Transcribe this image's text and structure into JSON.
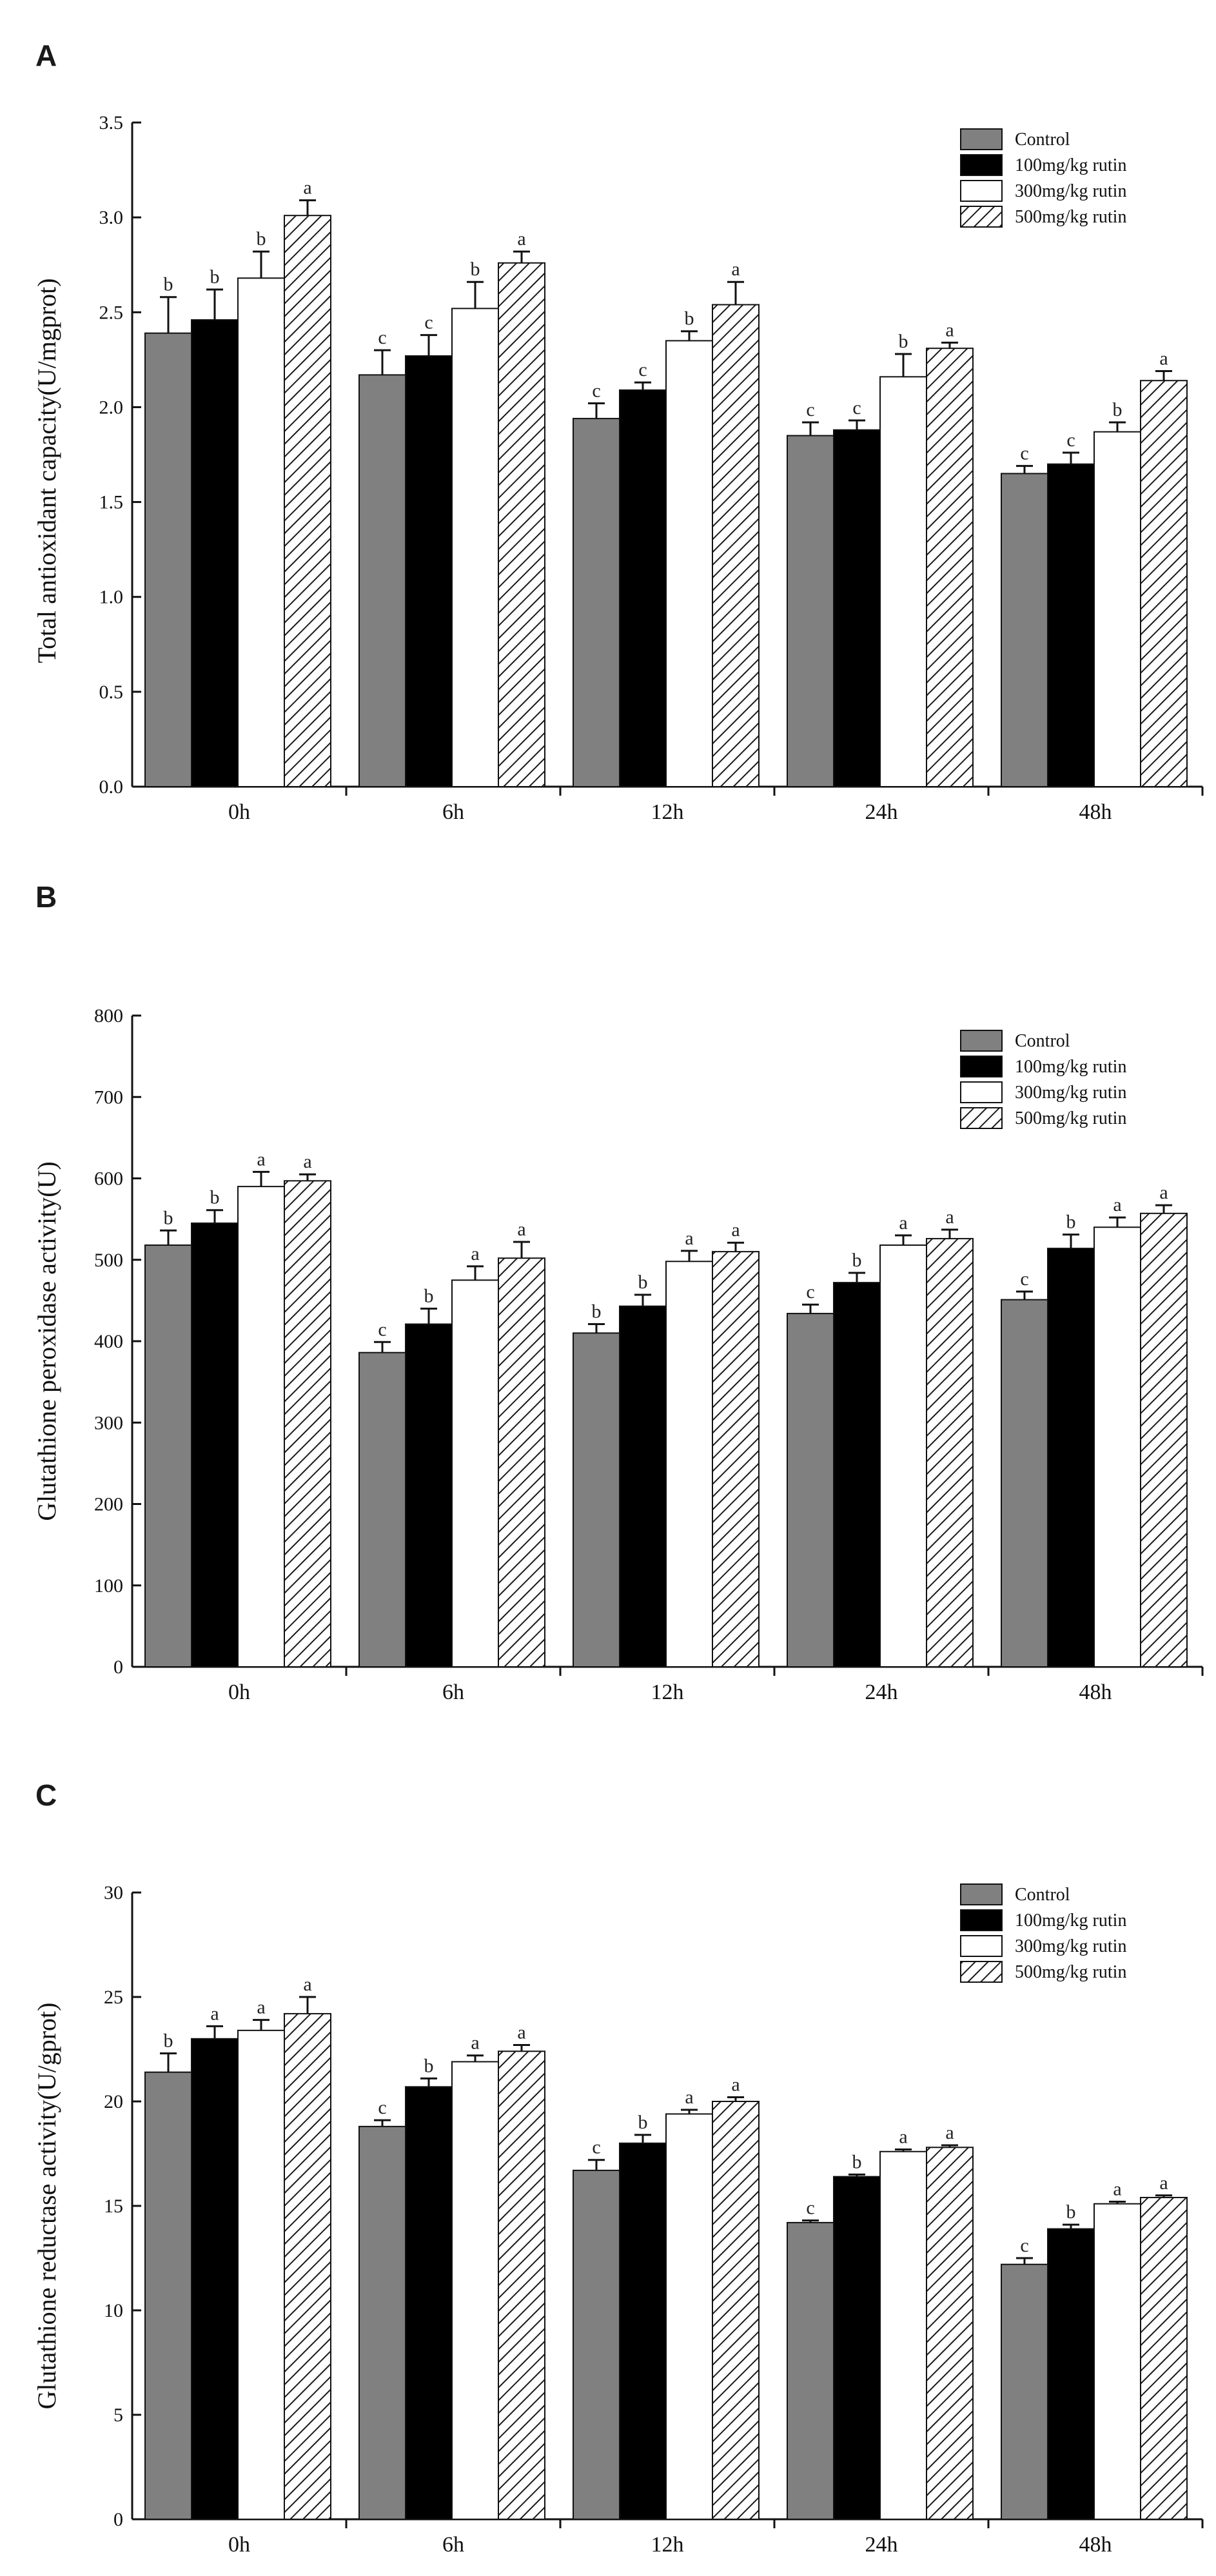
{
  "colors": {
    "control": "#808080",
    "rutin100": "#000000",
    "rutin300": "#ffffff",
    "rutin500_stripe": "#1a1a1a",
    "outline": "#111111"
  },
  "chart_data": [
    {
      "type": "bar",
      "panel": "A",
      "ylabel": "Total antioxidant capacity(U/mgprot)",
      "xlabel": "",
      "categories": [
        "0h",
        "6h",
        "12h",
        "24h",
        "48h"
      ],
      "ylim": [
        0,
        3.5
      ],
      "yticks": [
        0.0,
        0.5,
        1.0,
        1.5,
        2.0,
        2.5,
        3.0,
        3.5
      ],
      "ytick_labels": [
        "0.0",
        "0.5",
        "1.0",
        "1.5",
        "2.0",
        "2.5",
        "3.0",
        "3.5"
      ],
      "legend_position": "top-right",
      "series": [
        {
          "name": "Control",
          "values": [
            2.39,
            2.17,
            1.94,
            1.85,
            1.65
          ],
          "errors": [
            0.19,
            0.13,
            0.08,
            0.07,
            0.04
          ],
          "letters": [
            "b",
            "c",
            "c",
            "c",
            "c"
          ]
        },
        {
          "name": "100mg/kg rutin",
          "values": [
            2.46,
            2.27,
            2.09,
            1.88,
            1.7
          ],
          "errors": [
            0.16,
            0.11,
            0.04,
            0.05,
            0.06
          ],
          "letters": [
            "b",
            "c",
            "c",
            "c",
            "c"
          ]
        },
        {
          "name": "300mg/kg rutin",
          "values": [
            2.68,
            2.52,
            2.35,
            2.16,
            1.87
          ],
          "errors": [
            0.14,
            0.14,
            0.05,
            0.12,
            0.05
          ],
          "letters": [
            "b",
            "b",
            "b",
            "b",
            "b"
          ]
        },
        {
          "name": "500mg/kg rutin",
          "values": [
            3.01,
            2.76,
            2.54,
            2.31,
            2.14
          ],
          "errors": [
            0.08,
            0.06,
            0.12,
            0.03,
            0.05
          ],
          "letters": [
            "a",
            "a",
            "a",
            "a",
            "a"
          ]
        }
      ]
    },
    {
      "type": "bar",
      "panel": "B",
      "ylabel": "Glutathione peroxidase activity(U)",
      "xlabel": "",
      "categories": [
        "0h",
        "6h",
        "12h",
        "24h",
        "48h"
      ],
      "ylim": [
        0,
        800
      ],
      "yticks": [
        0,
        100,
        200,
        300,
        400,
        500,
        600,
        700,
        800
      ],
      "ytick_labels": [
        "0",
        "100",
        "200",
        "300",
        "400",
        "500",
        "600",
        "700",
        "800"
      ],
      "legend_position": "top-right",
      "series": [
        {
          "name": "Control",
          "values": [
            518,
            386,
            410,
            434,
            451
          ],
          "errors": [
            18,
            13,
            11,
            11,
            10
          ],
          "letters": [
            "b",
            "c",
            "b",
            "c",
            "c"
          ]
        },
        {
          "name": "100mg/kg rutin",
          "values": [
            545,
            421,
            443,
            472,
            514
          ],
          "errors": [
            16,
            19,
            14,
            12,
            17
          ],
          "letters": [
            "b",
            "b",
            "b",
            "b",
            "b"
          ]
        },
        {
          "name": "300mg/kg rutin",
          "values": [
            590,
            475,
            498,
            518,
            540
          ],
          "errors": [
            18,
            17,
            13,
            12,
            12
          ],
          "letters": [
            "a",
            "a",
            "a",
            "a",
            "a"
          ]
        },
        {
          "name": "500mg/kg rutin",
          "values": [
            597,
            502,
            510,
            526,
            557
          ],
          "errors": [
            8,
            20,
            11,
            11,
            10
          ],
          "letters": [
            "a",
            "a",
            "a",
            "a",
            "a"
          ]
        }
      ]
    },
    {
      "type": "bar",
      "panel": "C",
      "ylabel": "Glutathione reductase activity(U/gprot)",
      "xlabel": "",
      "categories": [
        "0h",
        "6h",
        "12h",
        "24h",
        "48h"
      ],
      "ylim": [
        0,
        30
      ],
      "yticks": [
        0,
        5,
        10,
        15,
        20,
        25,
        30
      ],
      "ytick_labels": [
        "0",
        "5",
        "10",
        "15",
        "20",
        "25",
        "30"
      ],
      "legend_position": "top-right",
      "series": [
        {
          "name": "Control",
          "values": [
            21.4,
            18.8,
            16.7,
            14.2,
            12.2
          ],
          "errors": [
            0.9,
            0.3,
            0.5,
            0.1,
            0.3
          ],
          "letters": [
            "b",
            "c",
            "c",
            "c",
            "c"
          ]
        },
        {
          "name": "100mg/kg rutin",
          "values": [
            23.0,
            20.7,
            18.0,
            16.4,
            13.9
          ],
          "errors": [
            0.6,
            0.4,
            0.4,
            0.1,
            0.2
          ],
          "letters": [
            "a",
            "b",
            "b",
            "b",
            "b"
          ]
        },
        {
          "name": "300mg/kg rutin",
          "values": [
            23.4,
            21.9,
            19.4,
            17.6,
            15.1
          ],
          "errors": [
            0.5,
            0.3,
            0.2,
            0.1,
            0.1
          ],
          "letters": [
            "a",
            "a",
            "a",
            "a",
            "a"
          ]
        },
        {
          "name": "500mg/kg rutin",
          "values": [
            24.2,
            22.4,
            20.0,
            17.8,
            15.4
          ],
          "errors": [
            0.8,
            0.3,
            0.2,
            0.1,
            0.1
          ],
          "letters": [
            "a",
            "a",
            "a",
            "a",
            "a"
          ]
        }
      ]
    }
  ]
}
